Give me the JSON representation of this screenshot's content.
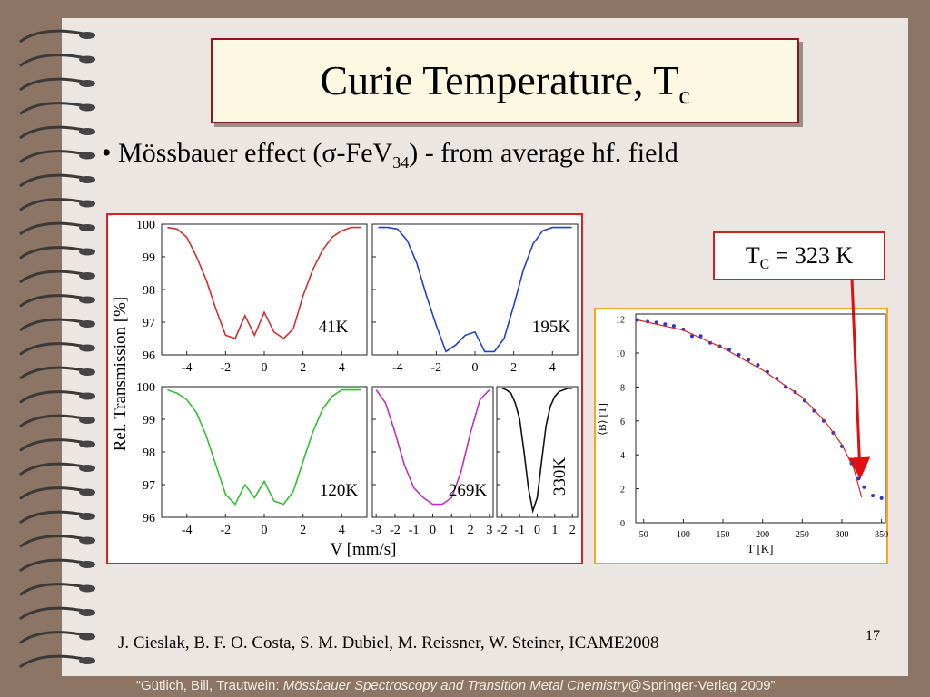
{
  "slide": {
    "title": {
      "text": "Curie Temperature, T",
      "sub": "c"
    },
    "bullet": {
      "text": "Mössbauer effect (σ-FeV",
      "sub": "34",
      "rest": ") - from average hf. field"
    },
    "annotation": {
      "text": "T",
      "sub": "C",
      "rest": " = 323 K"
    },
    "citation": "J. Cieslak, B. F. O. Costa, S. M. Dubiel, M. Reissner, W. Steiner, ICAME2008",
    "page_number": "17",
    "footer": {
      "text": "“Gütlich, Bill, Trautwein: ",
      "italic": "Mössbauer Spectroscopy and Transition Metal Chemistry",
      "rest": "@Springer-Verlag 2009”"
    }
  },
  "chart_data": [
    {
      "type": "line",
      "ylabel": "Rel. Transmission [%]",
      "xlabel": "V [mm/s]",
      "ylim": [
        96,
        100
      ],
      "yticks": [
        96,
        97,
        98,
        99,
        100
      ],
      "panels": [
        {
          "label": "41K",
          "color": "#d03030",
          "xlim": [
            -5.3,
            5.3
          ],
          "xticks": [
            -4,
            -2,
            0,
            2,
            4
          ],
          "x": [
            -5,
            -4.5,
            -4,
            -3.5,
            -3,
            -2.5,
            -2,
            -1.5,
            -1,
            -0.5,
            0,
            0.5,
            1,
            1.5,
            2,
            2.5,
            3,
            3.5,
            4,
            4.5,
            5
          ],
          "values": [
            99.9,
            99.85,
            99.6,
            99.0,
            98.3,
            97.4,
            96.6,
            96.5,
            97.2,
            96.6,
            97.3,
            96.7,
            96.5,
            96.8,
            97.8,
            98.6,
            99.2,
            99.6,
            99.8,
            99.9,
            99.9
          ]
        },
        {
          "label": "195K",
          "color": "#2040d0",
          "xlim": [
            -5.3,
            5.3
          ],
          "xticks": [
            -4,
            -2,
            0,
            2,
            4
          ],
          "x": [
            -5,
            -4.5,
            -4,
            -3.5,
            -3,
            -2.5,
            -2,
            -1.5,
            -1,
            -0.5,
            0,
            0.5,
            1,
            1.5,
            2,
            2.5,
            3,
            3.5,
            4,
            4.5,
            5
          ],
          "values": [
            99.9,
            99.9,
            99.85,
            99.5,
            98.8,
            97.8,
            96.9,
            96.1,
            96.3,
            96.6,
            96.7,
            96.1,
            96.1,
            96.5,
            97.5,
            98.6,
            99.4,
            99.8,
            99.9,
            99.9,
            99.9
          ]
        },
        {
          "label": "120K",
          "color": "#30c030",
          "xlim": [
            -5.3,
            5.3
          ],
          "xticks": [
            -4,
            -2,
            0,
            2,
            4
          ],
          "x": [
            -5,
            -4.5,
            -4,
            -3.5,
            -3,
            -2.5,
            -2,
            -1.5,
            -1,
            -0.5,
            0,
            0.5,
            1,
            1.5,
            2,
            2.5,
            3,
            3.5,
            4,
            4.5,
            5
          ],
          "values": [
            99.9,
            99.8,
            99.6,
            99.2,
            98.5,
            97.6,
            96.7,
            96.4,
            97.0,
            96.6,
            97.1,
            96.5,
            96.4,
            96.8,
            97.7,
            98.6,
            99.3,
            99.7,
            99.9,
            99.9,
            99.9
          ]
        },
        {
          "label": "269K",
          "color": "#c030c0",
          "xlim": [
            -3.2,
            3.2
          ],
          "xticks": [
            -3,
            -2,
            -1,
            0,
            1,
            2,
            3
          ],
          "x": [
            -3,
            -2.5,
            -2,
            -1.5,
            -1,
            -0.5,
            0,
            0.5,
            1,
            1.5,
            2,
            2.5,
            3
          ],
          "values": [
            99.9,
            99.5,
            98.6,
            97.6,
            96.9,
            96.6,
            96.4,
            96.4,
            96.6,
            97.4,
            98.6,
            99.6,
            99.9
          ]
        },
        {
          "label": "330K",
          "color": "#111111",
          "xlim": [
            -2.3,
            2.3
          ],
          "xticks": [
            -2,
            -1,
            0,
            1,
            2
          ],
          "x": [
            -2,
            -1.75,
            -1.5,
            -1.25,
            -1,
            -0.75,
            -0.5,
            -0.25,
            0,
            0.25,
            0.5,
            0.75,
            1,
            1.25,
            1.5,
            1.75,
            2
          ],
          "values": [
            99.95,
            99.9,
            99.8,
            99.5,
            99.0,
            98.0,
            96.9,
            96.2,
            96.6,
            97.7,
            98.8,
            99.4,
            99.7,
            99.85,
            99.9,
            99.95,
            99.95
          ]
        }
      ]
    },
    {
      "type": "scatter",
      "ylabel": "⟨B⟩ [T]",
      "xlabel": "T [K]",
      "xlim": [
        40,
        355
      ],
      "xticks": [
        50,
        100,
        150,
        200,
        250,
        300,
        350
      ],
      "ylim": [
        0,
        12.3
      ],
      "yticks": [
        0,
        2,
        4,
        6,
        8,
        10,
        12
      ],
      "series": [
        {
          "color": "#2233dd",
          "style": "markers",
          "x": [
            42,
            55,
            66,
            77,
            88,
            100,
            111,
            122,
            134,
            146,
            158,
            170,
            182,
            194,
            206,
            218,
            229,
            241,
            253,
            265,
            277,
            289,
            300,
            312,
            321,
            328,
            339,
            350
          ],
          "values": [
            11.95,
            11.85,
            11.8,
            11.7,
            11.6,
            11.4,
            11.0,
            11.0,
            10.6,
            10.4,
            10.2,
            9.9,
            9.6,
            9.3,
            8.9,
            8.5,
            8.0,
            7.7,
            7.2,
            6.6,
            6.0,
            5.3,
            4.5,
            3.5,
            2.6,
            2.1,
            1.6,
            1.45
          ]
        },
        {
          "color": "#dd2222",
          "style": "line",
          "x": [
            42,
            100,
            150,
            200,
            250,
            280,
            300,
            315,
            325
          ],
          "values": [
            11.95,
            11.35,
            10.3,
            9.0,
            7.4,
            5.9,
            4.6,
            3.2,
            1.5
          ]
        }
      ]
    }
  ]
}
